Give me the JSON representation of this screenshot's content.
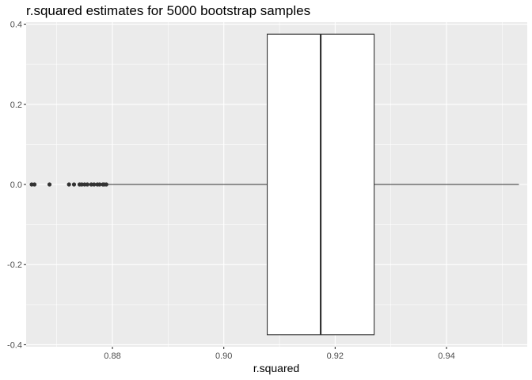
{
  "chart_data": {
    "type": "boxplot",
    "title": "r.squared estimates for 5000 bootstrap samples",
    "xlabel": "r.squared",
    "ylabel": "",
    "xlim": [
      0.8645,
      0.9545
    ],
    "ylim": [
      -0.405,
      0.405
    ],
    "x_ticks": [
      {
        "value": 0.88,
        "label": "0.88"
      },
      {
        "value": 0.9,
        "label": "0.90"
      },
      {
        "value": 0.92,
        "label": "0.92"
      },
      {
        "value": 0.94,
        "label": "0.94"
      }
    ],
    "y_ticks": [
      {
        "value": 0.4,
        "label": "0.4"
      },
      {
        "value": 0.2,
        "label": "0.2"
      },
      {
        "value": 0.0,
        "label": "0.0"
      },
      {
        "value": -0.2,
        "label": "-0.2"
      },
      {
        "value": -0.4,
        "label": "-0.4"
      }
    ],
    "box": {
      "whisker_low": 0.879,
      "q1": 0.9078,
      "median": 0.9174,
      "q3": 0.927,
      "whisker_high": 0.953,
      "y_center": 0.0,
      "y_half_height": 0.375
    },
    "outliers": [
      0.8655,
      0.866,
      0.8687,
      0.8722,
      0.8731,
      0.8741,
      0.8745,
      0.875,
      0.8755,
      0.8762,
      0.8767,
      0.8773,
      0.8777,
      0.8783,
      0.8785,
      0.8789
    ],
    "grid": true,
    "colors": {
      "panel_background": "#ebebeb",
      "grid_major": "#ffffff",
      "box_fill": "#ffffff",
      "box_line": "#333333",
      "outlier": "#333333"
    }
  }
}
